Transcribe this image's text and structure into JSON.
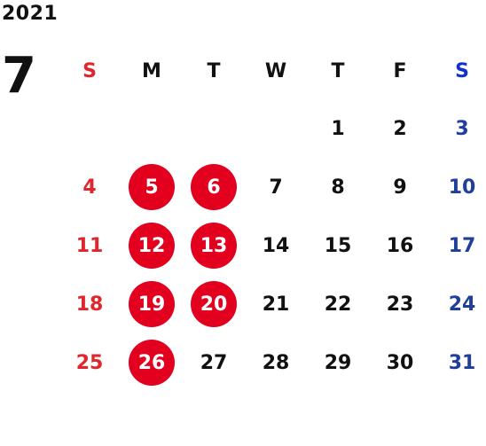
{
  "calendar": {
    "year": "2021",
    "month": "7",
    "weekdays": [
      "S",
      "M",
      "T",
      "W",
      "T",
      "F",
      "S"
    ],
    "weeks": [
      [
        "",
        "",
        "",
        "",
        "1",
        "2",
        "3"
      ],
      [
        "4",
        "5",
        "6",
        "7",
        "8",
        "9",
        "10"
      ],
      [
        "11",
        "12",
        "13",
        "14",
        "15",
        "16",
        "17"
      ],
      [
        "18",
        "19",
        "20",
        "21",
        "22",
        "23",
        "24"
      ],
      [
        "25",
        "26",
        "27",
        "28",
        "29",
        "30",
        "31"
      ]
    ],
    "highlighted_days": [
      "5",
      "6",
      "12",
      "13",
      "19",
      "20",
      "26"
    ],
    "colors": {
      "sunday": "#e0262c",
      "saturday": "#1f3f9a",
      "highlight": "#e3001f"
    }
  }
}
